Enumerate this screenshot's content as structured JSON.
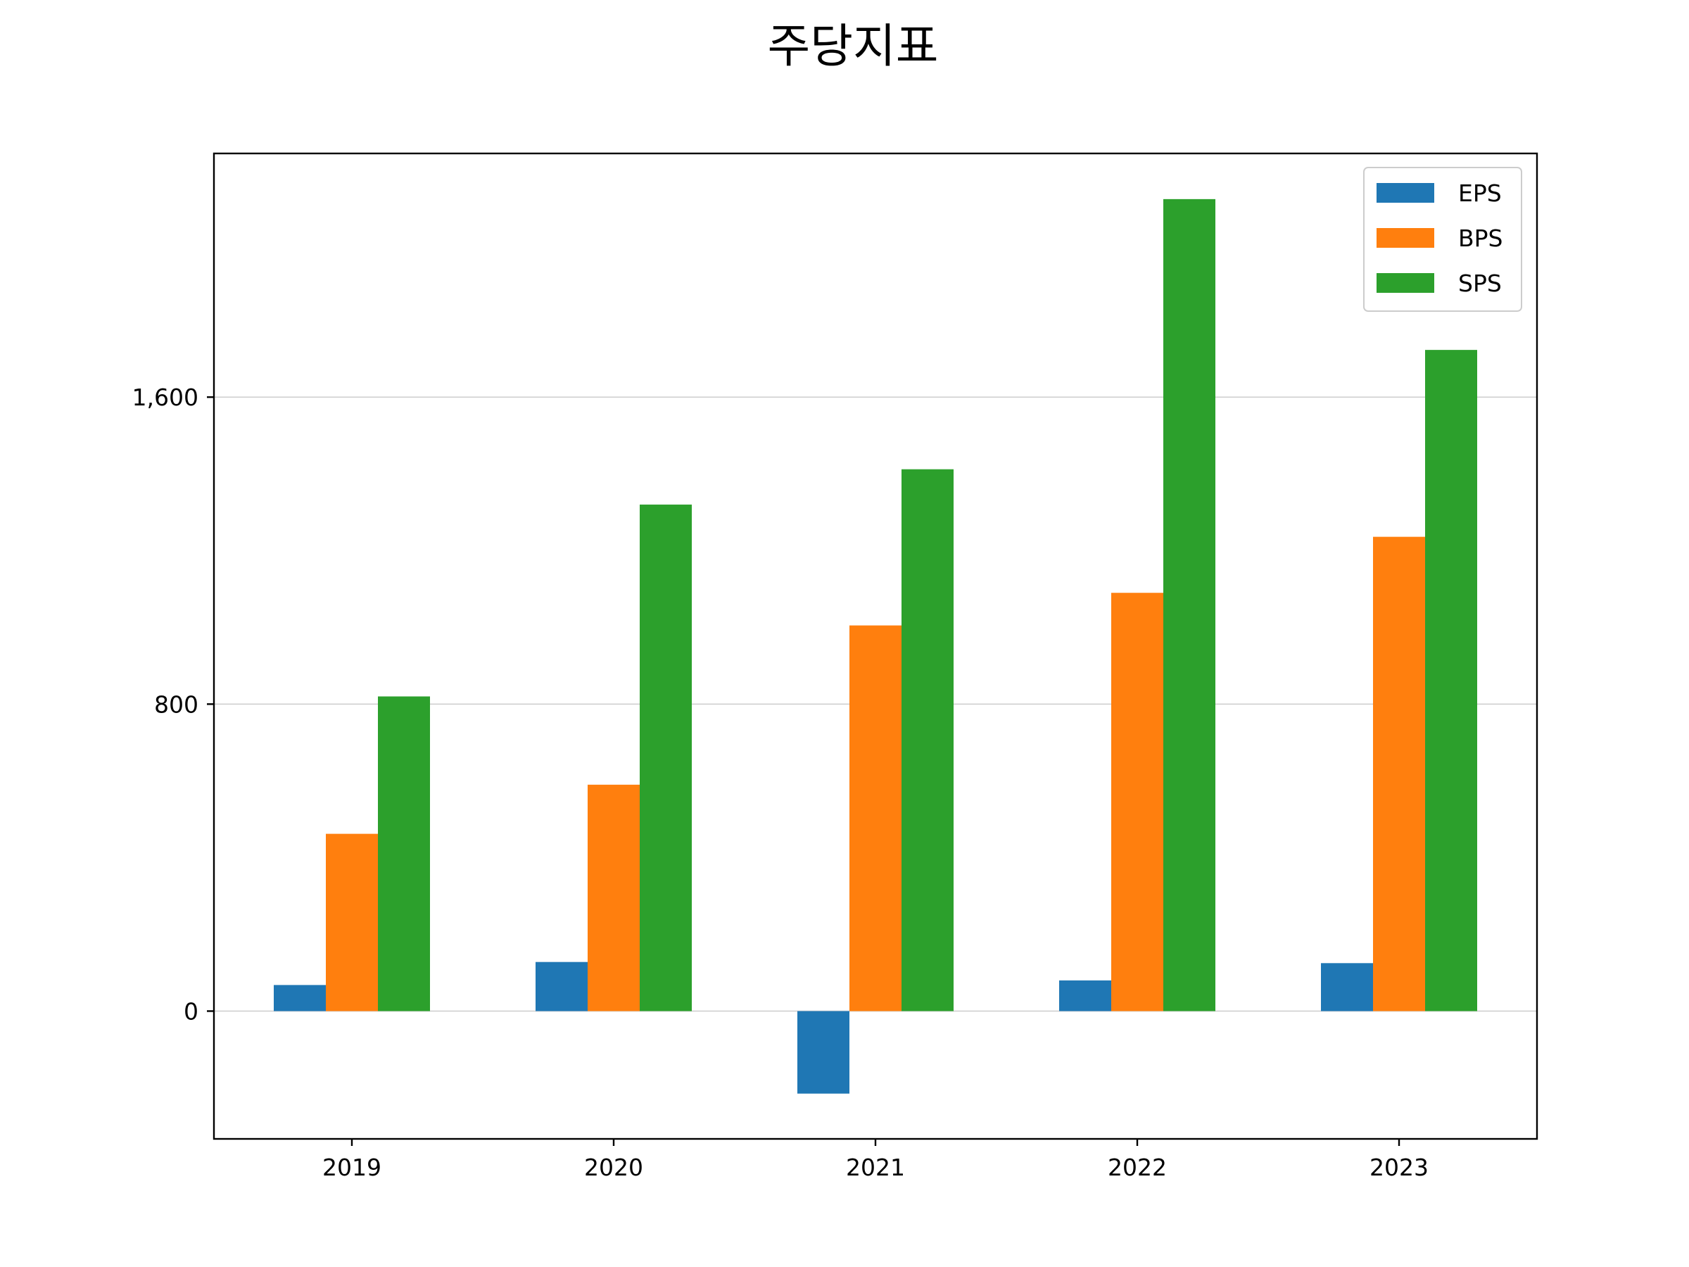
{
  "chart_data": {
    "type": "bar",
    "title": "주당지표",
    "xlabel": "",
    "ylabel": "",
    "categories": [
      "2019",
      "2020",
      "2021",
      "2022",
      "2023"
    ],
    "series": [
      {
        "name": "EPS",
        "color": "#1f77b4",
        "values": [
          68,
          128,
          -215,
          80,
          125
        ]
      },
      {
        "name": "BPS",
        "color": "#ff7f0e",
        "values": [
          462,
          590,
          1005,
          1090,
          1236
        ]
      },
      {
        "name": "SPS",
        "color": "#2ca02c",
        "values": [
          820,
          1320,
          1412,
          2116,
          1723
        ]
      }
    ],
    "yticks": [
      0,
      800,
      1600
    ],
    "ytick_labels": [
      "0",
      "800",
      "1,600"
    ],
    "ylim": [
      -333,
      2235
    ],
    "grid": "y",
    "legend_position": "top-right"
  }
}
